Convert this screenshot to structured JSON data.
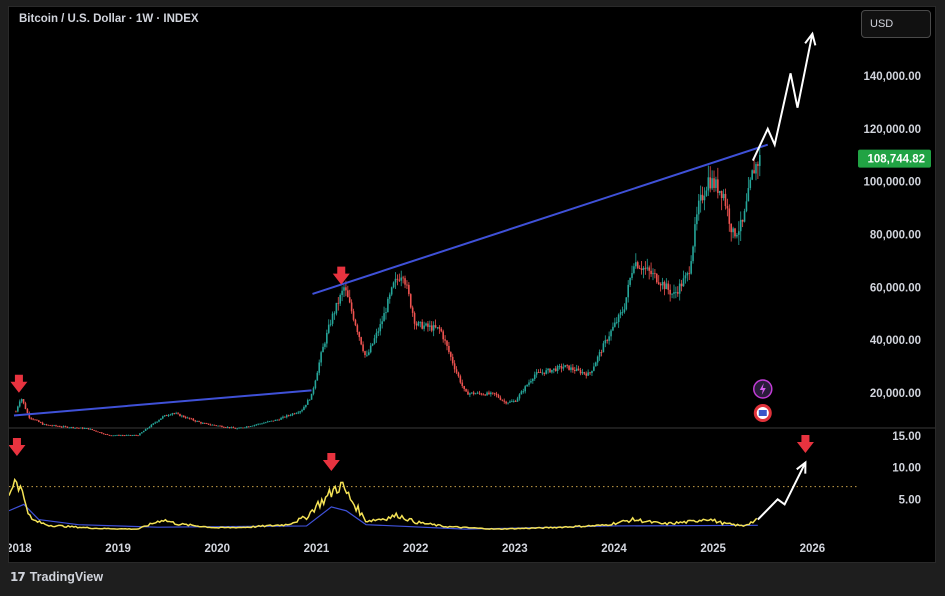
{
  "header": {
    "title": "Bitcoin / U.S. Dollar · 1W · INDEX",
    "currency_button": "USD"
  },
  "footer": {
    "logo_glyph": "17",
    "brand": "TradingView"
  },
  "price_badge": "108,744.82",
  "colors": {
    "up": "#26a69a",
    "down": "#ef5350",
    "trendline": "#3f51d8",
    "arrow": "#e8333f",
    "indicator": "#f5e356",
    "indicator_secondary": "#3f51d8",
    "badge": "#21a344"
  },
  "chart_data": [
    {
      "type": "candlestick",
      "title": "Bitcoin / U.S. Dollar · 1W · INDEX",
      "x_axis_labels": [
        "2018",
        "2019",
        "2020",
        "2021",
        "2022",
        "2023",
        "2024",
        "2025",
        "2026"
      ],
      "y_axis_labels": [
        "140,000.00",
        "120,000.00",
        "100,000.00",
        "80,000.00",
        "60,000.00",
        "40,000.00",
        "20,000.00"
      ],
      "y_ticks": [
        140000,
        120000,
        100000,
        80000,
        60000,
        40000,
        20000
      ],
      "ylim": [
        7000,
        158000
      ],
      "xlim": [
        2017.9,
        2026.45
      ],
      "last_price": 108744.82,
      "price_path": [
        [
          2017.97,
          13000
        ],
        [
          2018.02,
          18500
        ],
        [
          2018.1,
          11000
        ],
        [
          2018.25,
          8000
        ],
        [
          2018.45,
          7200
        ],
        [
          2018.7,
          6500
        ],
        [
          2018.9,
          4000
        ],
        [
          2019.2,
          4000
        ],
        [
          2019.45,
          11000
        ],
        [
          2019.55,
          12500
        ],
        [
          2019.85,
          8500
        ],
        [
          2020.2,
          6500
        ],
        [
          2020.6,
          9800
        ],
        [
          2020.85,
          13500
        ],
        [
          2020.95,
          19000
        ],
        [
          2021.05,
          35000
        ],
        [
          2021.15,
          48000
        ],
        [
          2021.28,
          60000
        ],
        [
          2021.38,
          48000
        ],
        [
          2021.5,
          33000
        ],
        [
          2021.65,
          46000
        ],
        [
          2021.78,
          61000
        ],
        [
          2021.87,
          66000
        ],
        [
          2022.0,
          46000
        ],
        [
          2022.25,
          44000
        ],
        [
          2022.4,
          29000
        ],
        [
          2022.5,
          20000
        ],
        [
          2022.8,
          19500
        ],
        [
          2022.9,
          16500
        ],
        [
          2023.0,
          16800
        ],
        [
          2023.2,
          27000
        ],
        [
          2023.5,
          30000
        ],
        [
          2023.75,
          27000
        ],
        [
          2023.95,
          42000
        ],
        [
          2024.1,
          52000
        ],
        [
          2024.2,
          70000
        ],
        [
          2024.45,
          63000
        ],
        [
          2024.6,
          57000
        ],
        [
          2024.75,
          65000
        ],
        [
          2024.85,
          90000
        ],
        [
          2024.95,
          101000
        ],
        [
          2025.1,
          96000
        ],
        [
          2025.2,
          80000
        ],
        [
          2025.3,
          84000
        ],
        [
          2025.4,
          104000
        ],
        [
          2025.47,
          108744.82
        ]
      ],
      "trendlines": [
        {
          "name": "lower",
          "points": [
            [
              2017.95,
              11500
            ],
            [
              2020.95,
              21000
            ]
          ]
        },
        {
          "name": "upper",
          "points": [
            [
              2020.96,
              57500
            ],
            [
              2025.55,
              114000
            ]
          ]
        }
      ],
      "projection_path": [
        [
          2025.4,
          108000
        ],
        [
          2025.55,
          120000
        ],
        [
          2025.62,
          114000
        ],
        [
          2025.78,
          141000
        ],
        [
          2025.85,
          128000
        ],
        [
          2026.0,
          156000
        ]
      ],
      "peak_markers_x": [
        2018.0,
        2021.25
      ]
    },
    {
      "type": "line",
      "y_axis_labels": [
        "15.00",
        "10.00",
        "5.00"
      ],
      "y_ticks": [
        15,
        10,
        5
      ],
      "ylim": [
        0,
        15
      ],
      "threshold": 7,
      "series": [
        {
          "values": [
            [
              2017.9,
              6
            ],
            [
              2017.97,
              8.6
            ],
            [
              2018.02,
              6.5
            ],
            [
              2018.07,
              4.5
            ],
            [
              2018.12,
              1.8
            ],
            [
              2018.3,
              0.9
            ],
            [
              2018.8,
              0.4
            ],
            [
              2019.2,
              0.3
            ],
            [
              2019.45,
              1.8
            ],
            [
              2019.6,
              1.1
            ],
            [
              2020.0,
              0.5
            ],
            [
              2020.3,
              0.6
            ],
            [
              2020.7,
              1.0
            ],
            [
              2020.9,
              2.2
            ],
            [
              2021.0,
              4.0
            ],
            [
              2021.1,
              5.2
            ],
            [
              2021.2,
              6.9
            ],
            [
              2021.25,
              7.2
            ],
            [
              2021.32,
              5.6
            ],
            [
              2021.5,
              1.6
            ],
            [
              2021.7,
              2.0
            ],
            [
              2021.82,
              2.5
            ],
            [
              2022.0,
              1.4
            ],
            [
              2022.3,
              0.7
            ],
            [
              2022.8,
              0.3
            ],
            [
              2023.3,
              0.5
            ],
            [
              2023.9,
              0.9
            ],
            [
              2024.2,
              1.8
            ],
            [
              2024.5,
              1.1
            ],
            [
              2024.8,
              1.5
            ],
            [
              2024.93,
              2.0
            ],
            [
              2025.1,
              1.2
            ],
            [
              2025.3,
              0.8
            ],
            [
              2025.45,
              1.8
            ]
          ]
        },
        {
          "values": [
            [
              2017.9,
              3.2
            ],
            [
              2018.05,
              4.2
            ],
            [
              2018.2,
              1.8
            ],
            [
              2018.6,
              1.0
            ],
            [
              2019.4,
              0.6
            ],
            [
              2020.9,
              0.8
            ],
            [
              2021.15,
              3.8
            ],
            [
              2021.3,
              3.2
            ],
            [
              2021.5,
              1.0
            ],
            [
              2022.5,
              0.3
            ],
            [
              2024.0,
              0.8
            ],
            [
              2025.45,
              0.9
            ]
          ]
        }
      ],
      "projection_path": [
        [
          2025.45,
          1.8
        ],
        [
          2025.65,
          5.0
        ],
        [
          2025.72,
          4.2
        ],
        [
          2025.93,
          10.8
        ]
      ],
      "peak_markers_x": [
        2017.98,
        2021.15,
        2025.93
      ]
    }
  ]
}
